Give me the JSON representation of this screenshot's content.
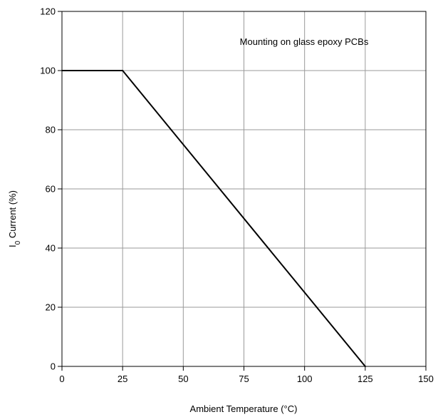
{
  "chart_data": {
    "type": "line",
    "xlabel": "Ambient Temperature (°C)",
    "ylabel": {
      "main": "I",
      "sub": "0",
      "rest": " Current (%)"
    },
    "xlim": [
      0,
      150
    ],
    "ylim": [
      0,
      120
    ],
    "xticks": [
      0,
      25,
      50,
      75,
      100,
      125,
      150
    ],
    "yticks": [
      0,
      20,
      40,
      60,
      80,
      100,
      120
    ],
    "grid": true,
    "annotation": "Mounting on glass epoxy PCBs",
    "series": [
      {
        "x": [
          0,
          25,
          125
        ],
        "y": [
          100,
          100,
          0
        ]
      }
    ]
  }
}
